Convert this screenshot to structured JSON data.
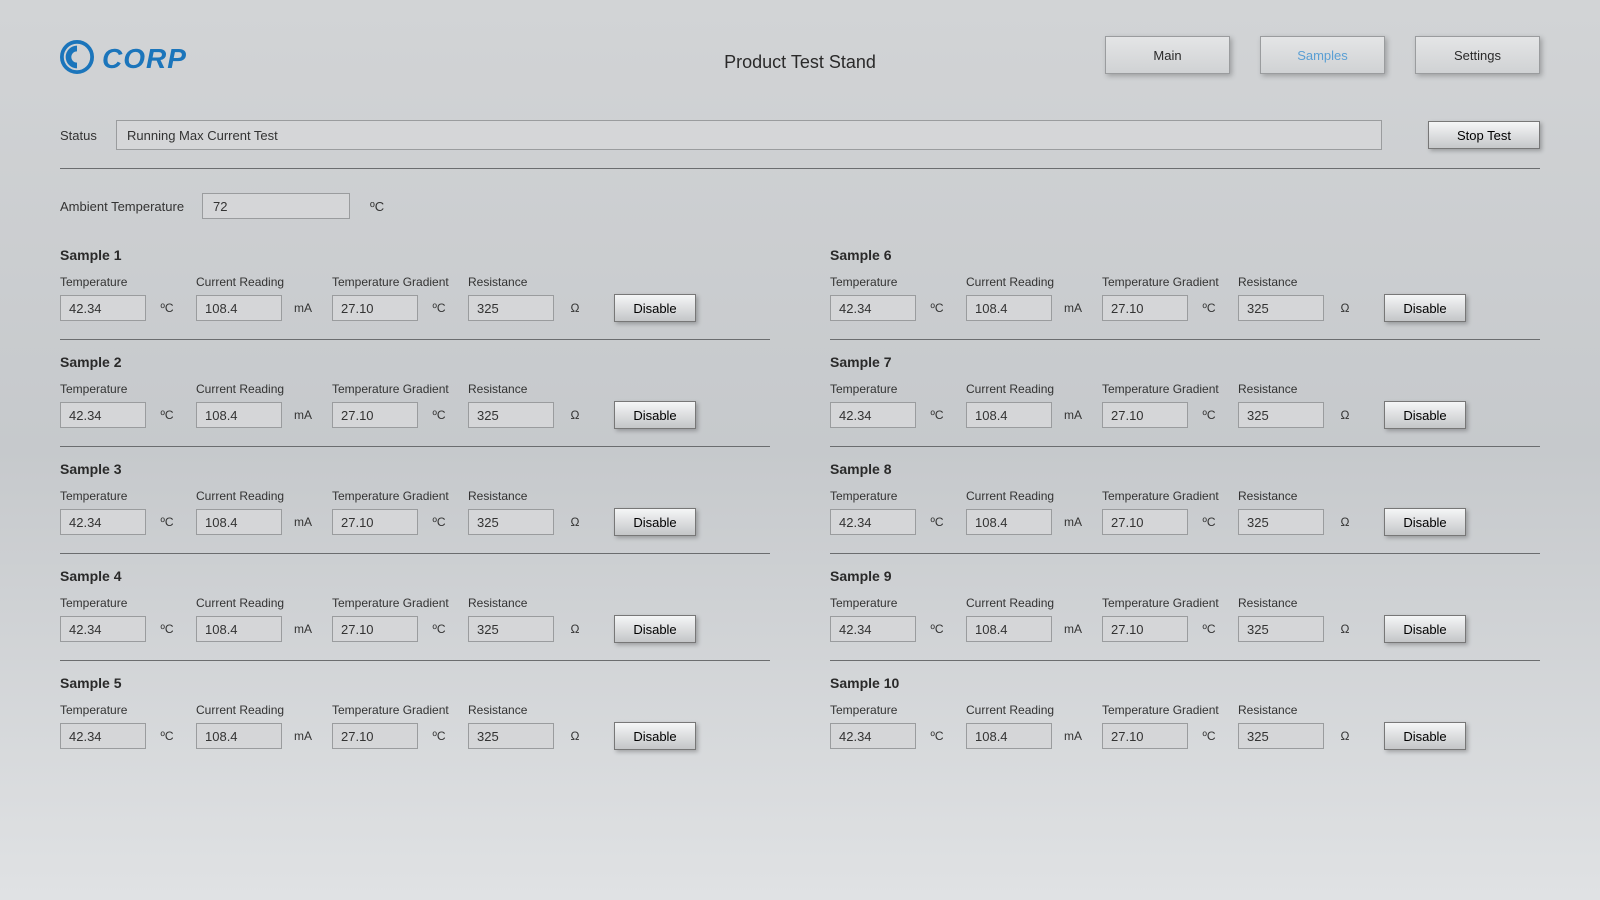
{
  "brand": {
    "name": "CORP"
  },
  "page_title": "Product Test Stand",
  "nav": {
    "main": "Main",
    "samples": "Samples",
    "settings": "Settings",
    "active": "samples"
  },
  "status": {
    "label": "Status",
    "value": "Running Max Current Test",
    "stop_label": "Stop Test"
  },
  "ambient": {
    "label": "Ambient Temperature",
    "value": "72",
    "unit": "ºC"
  },
  "column_labels": {
    "temperature": "Temperature",
    "current": "Current Reading",
    "gradient": "Temperature Gradient",
    "resistance": "Resistance"
  },
  "units": {
    "temperature": "ºC",
    "current": "mA",
    "gradient": "ºC",
    "resistance": "Ω"
  },
  "disable_label": "Disable",
  "samples": [
    {
      "title": "Sample 1",
      "temperature": "42.34",
      "current": "108.4",
      "gradient": "27.10",
      "resistance": "325"
    },
    {
      "title": "Sample 2",
      "temperature": "42.34",
      "current": "108.4",
      "gradient": "27.10",
      "resistance": "325"
    },
    {
      "title": "Sample 3",
      "temperature": "42.34",
      "current": "108.4",
      "gradient": "27.10",
      "resistance": "325"
    },
    {
      "title": "Sample 4",
      "temperature": "42.34",
      "current": "108.4",
      "gradient": "27.10",
      "resistance": "325"
    },
    {
      "title": "Sample 5",
      "temperature": "42.34",
      "current": "108.4",
      "gradient": "27.10",
      "resistance": "325"
    },
    {
      "title": "Sample 6",
      "temperature": "42.34",
      "current": "108.4",
      "gradient": "27.10",
      "resistance": "325"
    },
    {
      "title": "Sample 7",
      "temperature": "42.34",
      "current": "108.4",
      "gradient": "27.10",
      "resistance": "325"
    },
    {
      "title": "Sample 8",
      "temperature": "42.34",
      "current": "108.4",
      "gradient": "27.10",
      "resistance": "325"
    },
    {
      "title": "Sample 9",
      "temperature": "42.34",
      "current": "108.4",
      "gradient": "27.10",
      "resistance": "325"
    },
    {
      "title": "Sample 10",
      "temperature": "42.34",
      "current": "108.4",
      "gradient": "27.10",
      "resistance": "325"
    }
  ],
  "colors": {
    "brand": "#1b75bb",
    "active_tab": "#5a9fd4",
    "field_bg": "#d5d6d8",
    "border": "#9a9c9e",
    "divider": "#6b6d6f"
  }
}
